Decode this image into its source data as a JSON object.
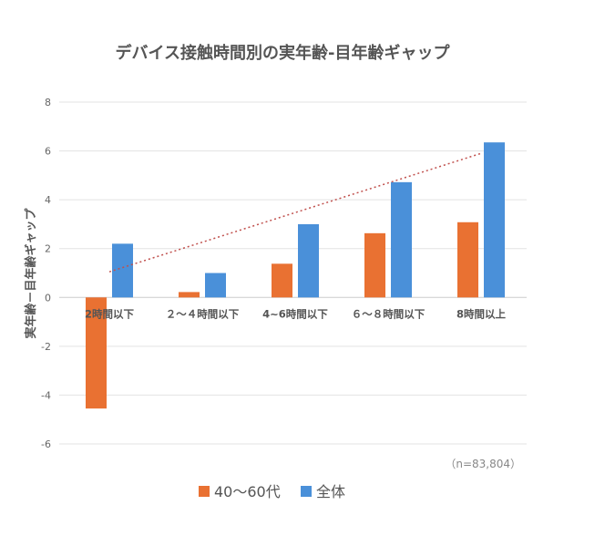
{
  "chart_data": {
    "type": "bar",
    "title": "デバイス接触時間別の実年齢-目年齢ギャップ",
    "xlabel": "",
    "ylabel": "実年齢－目年齢ギャップ",
    "ylim": [
      -6,
      8
    ],
    "yticks": [
      "8",
      "6",
      "4",
      "2",
      "0",
      "-2",
      "-4",
      "-6"
    ],
    "ytick_values": [
      8,
      6,
      4,
      2,
      0,
      -2,
      -4,
      -6
    ],
    "grid": true,
    "legend_position": "bottom",
    "categories": [
      "2時間以下",
      "２～４時間以下",
      "4~6時間以下",
      "６～８時間以下",
      "8時間以上"
    ],
    "series": [
      {
        "name": "40～60代",
        "color": "#E97132",
        "values": [
          -4.55,
          0.22,
          1.38,
          2.63,
          3.08
        ]
      },
      {
        "name": "全体",
        "color": "#4A90D9",
        "values": [
          2.2,
          1.0,
          3.0,
          4.72,
          6.35
        ]
      }
    ],
    "trendline": {
      "series": "全体",
      "style": "dotted",
      "color": "#C0504D",
      "start": 1.05,
      "end": 5.9
    },
    "annotation": "（n=83,804）"
  }
}
